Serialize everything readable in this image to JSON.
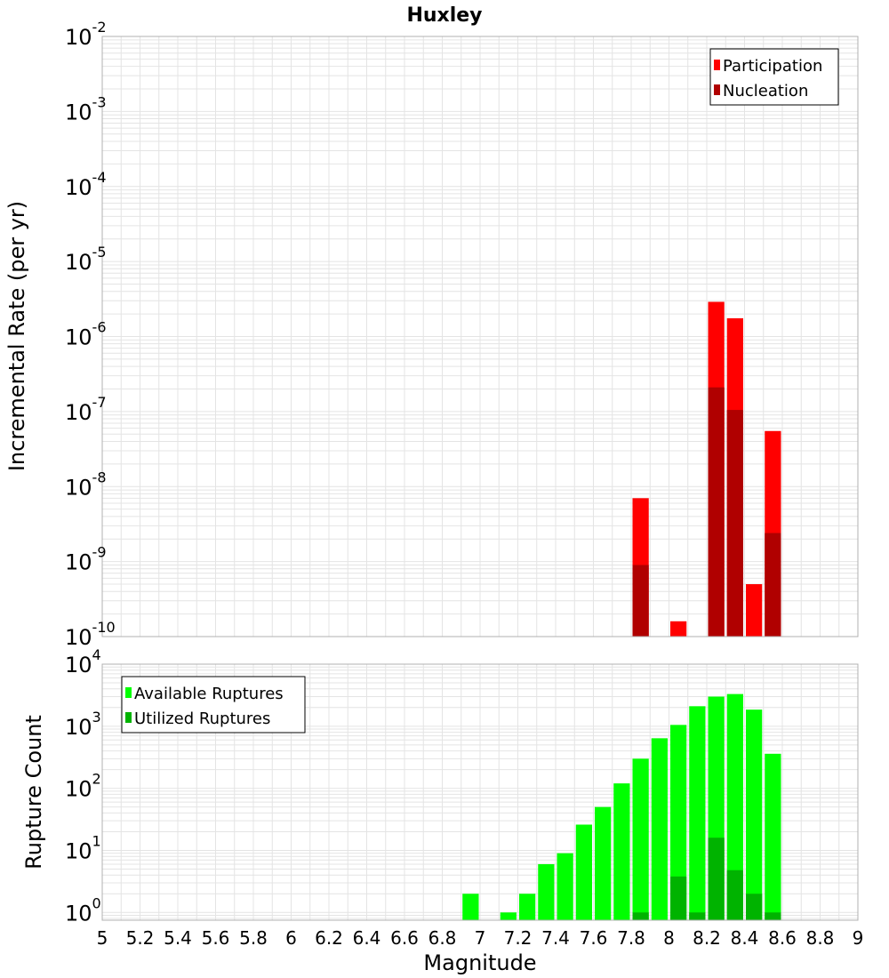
{
  "title": "Huxley",
  "colors": {
    "participation": "#ff0000",
    "nucleation": "#b00000",
    "available": "#00ff00",
    "utilized": "#00b300",
    "grid": "#e4e4e4",
    "frame": "#b0b0b0"
  },
  "chart_data": [
    {
      "type": "bar",
      "ylabel": "Incremental Rate (per yr)",
      "yscale": "log",
      "ylim": [
        1e-10,
        0.01
      ],
      "xlim": [
        5,
        9
      ],
      "bar_width": 0.1,
      "ytick_exponents": [
        -10,
        -9,
        -8,
        -7,
        -6,
        -5,
        -4,
        -3,
        -2
      ],
      "legend": {
        "position": "top-right",
        "entries": [
          "Participation",
          "Nucleation"
        ]
      },
      "series": [
        {
          "name": "Participation",
          "color": "#ff0000",
          "x": [
            7.85,
            8.05,
            8.25,
            8.35,
            8.45,
            8.55
          ],
          "values": [
            7e-09,
            1.6e-10,
            2.9e-06,
            1.75e-06,
            5e-10,
            5.5e-08
          ]
        },
        {
          "name": "Nucleation",
          "color": "#b00000",
          "x": [
            7.85,
            8.25,
            8.35,
            8.55
          ],
          "values": [
            9e-10,
            2.1e-07,
            1.05e-07,
            2.4e-09
          ]
        }
      ]
    },
    {
      "type": "bar",
      "xlabel": "Magnitude",
      "ylabel": "Rupture Count",
      "yscale": "log",
      "ylim": [
        0.75,
        10000
      ],
      "xlim": [
        5,
        9
      ],
      "bar_width": 0.1,
      "ytick_exponents": [
        0,
        1,
        2,
        3,
        4
      ],
      "xticks": [
        "5",
        "5.2",
        "5.4",
        "5.6",
        "5.8",
        "6",
        "6.2",
        "6.4",
        "6.6",
        "6.8",
        "7",
        "7.2",
        "7.4",
        "7.6",
        "7.8",
        "8",
        "8.2",
        "8.4",
        "8.6",
        "8.8",
        "9"
      ],
      "legend": {
        "position": "top-left",
        "entries": [
          "Available Ruptures",
          "Utilized Ruptures"
        ]
      },
      "series": [
        {
          "name": "Available Ruptures",
          "color": "#00ff00",
          "x": [
            6.95,
            7.15,
            7.25,
            7.35,
            7.45,
            7.55,
            7.65,
            7.75,
            7.85,
            7.95,
            8.05,
            8.15,
            8.25,
            8.35,
            8.45,
            8.55
          ],
          "values": [
            2,
            1,
            2,
            6,
            9,
            26,
            50,
            120,
            300,
            640,
            1050,
            2100,
            3000,
            3300,
            1850,
            360
          ]
        },
        {
          "name": "Utilized Ruptures",
          "color": "#00b300",
          "x": [
            7.85,
            8.05,
            8.15,
            8.25,
            8.35,
            8.45,
            8.55
          ],
          "values": [
            1,
            3.8,
            1,
            16,
            4.8,
            2,
            1
          ]
        }
      ]
    }
  ]
}
